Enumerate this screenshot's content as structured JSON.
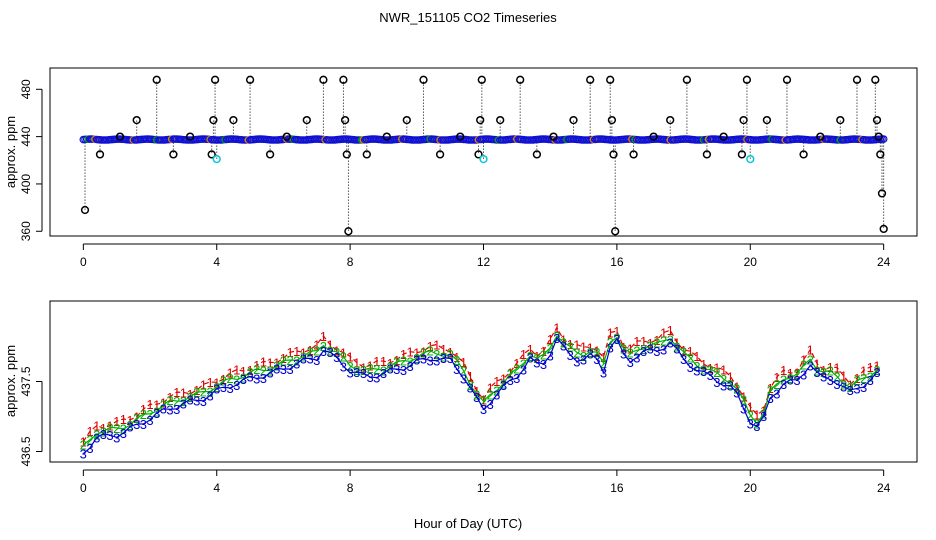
{
  "chart_data": [
    {
      "type": "scatter",
      "panel": "top",
      "title": "NWR_151105  CO2 Timeseries",
      "xlabel": "",
      "ylabel": "approx. ppm",
      "xlim": [
        -1,
        25
      ],
      "ylim": [
        356,
        498
      ],
      "xticks": [
        "0",
        "4",
        "8",
        "12",
        "16",
        "20",
        "24"
      ],
      "yticks": [
        "360",
        "400",
        "440",
        "480"
      ],
      "grid": false,
      "baseline_ppm": 437.5,
      "colors": {
        "main": "#1010d0",
        "flag_black": "#000000",
        "flag_cyan": "#00c8d8",
        "flag_orange": "#e08000",
        "drop": "#000000"
      },
      "spikes": [
        {
          "x": 0.05,
          "y": 378
        },
        {
          "x": 0.5,
          "y": 425
        },
        {
          "x": 1.1,
          "y": 440
        },
        {
          "x": 1.6,
          "y": 454
        },
        {
          "x": 2.2,
          "y": 488
        },
        {
          "x": 2.7,
          "y": 425
        },
        {
          "x": 3.2,
          "y": 440
        },
        {
          "x": 3.85,
          "y": 425
        },
        {
          "x": 3.9,
          "y": 454
        },
        {
          "x": 3.95,
          "y": 488
        },
        {
          "x": 4.0,
          "y": 421
        },
        {
          "x": 4.5,
          "y": 454
        },
        {
          "x": 5.0,
          "y": 488
        },
        {
          "x": 5.6,
          "y": 425
        },
        {
          "x": 6.1,
          "y": 440
        },
        {
          "x": 6.7,
          "y": 454
        },
        {
          "x": 7.2,
          "y": 488
        },
        {
          "x": 7.8,
          "y": 488
        },
        {
          "x": 7.85,
          "y": 454
        },
        {
          "x": 7.9,
          "y": 425
        },
        {
          "x": 7.95,
          "y": 360
        },
        {
          "x": 8.5,
          "y": 425
        },
        {
          "x": 9.1,
          "y": 440
        },
        {
          "x": 9.7,
          "y": 454
        },
        {
          "x": 10.2,
          "y": 488
        },
        {
          "x": 10.7,
          "y": 425
        },
        {
          "x": 11.3,
          "y": 440
        },
        {
          "x": 11.85,
          "y": 425
        },
        {
          "x": 11.9,
          "y": 454
        },
        {
          "x": 11.95,
          "y": 488
        },
        {
          "x": 12.0,
          "y": 421
        },
        {
          "x": 12.5,
          "y": 454
        },
        {
          "x": 13.1,
          "y": 488
        },
        {
          "x": 13.6,
          "y": 425
        },
        {
          "x": 14.1,
          "y": 440
        },
        {
          "x": 14.7,
          "y": 454
        },
        {
          "x": 15.2,
          "y": 488
        },
        {
          "x": 15.8,
          "y": 488
        },
        {
          "x": 15.85,
          "y": 454
        },
        {
          "x": 15.9,
          "y": 425
        },
        {
          "x": 15.95,
          "y": 360
        },
        {
          "x": 16.5,
          "y": 425
        },
        {
          "x": 17.1,
          "y": 440
        },
        {
          "x": 17.6,
          "y": 454
        },
        {
          "x": 18.1,
          "y": 488
        },
        {
          "x": 18.7,
          "y": 425
        },
        {
          "x": 19.2,
          "y": 440
        },
        {
          "x": 19.75,
          "y": 425
        },
        {
          "x": 19.8,
          "y": 454
        },
        {
          "x": 19.9,
          "y": 488
        },
        {
          "x": 20.0,
          "y": 421
        },
        {
          "x": 20.5,
          "y": 454
        },
        {
          "x": 21.1,
          "y": 488
        },
        {
          "x": 21.6,
          "y": 425
        },
        {
          "x": 22.1,
          "y": 440
        },
        {
          "x": 22.7,
          "y": 454
        },
        {
          "x": 23.2,
          "y": 488
        },
        {
          "x": 23.75,
          "y": 488
        },
        {
          "x": 23.8,
          "y": 454
        },
        {
          "x": 23.85,
          "y": 440
        },
        {
          "x": 23.9,
          "y": 425
        },
        {
          "x": 23.95,
          "y": 392
        },
        {
          "x": 24.0,
          "y": 362
        }
      ]
    },
    {
      "type": "line",
      "panel": "bottom",
      "title": "",
      "xlabel": "Hour of Day (UTC)",
      "ylabel": "approx. ppm",
      "xlim": [
        -1,
        25
      ],
      "ylim": [
        436.35,
        438.65
      ],
      "xticks": [
        "0",
        "4",
        "8",
        "12",
        "16",
        "20",
        "24"
      ],
      "yticks": [
        "436.5",
        "437.5"
      ],
      "grid": false,
      "knots": [
        [
          0.0,
          436.52
        ],
        [
          0.4,
          436.74
        ],
        [
          1.0,
          436.78
        ],
        [
          1.5,
          436.88
        ],
        [
          2.0,
          437.02
        ],
        [
          2.5,
          437.14
        ],
        [
          3.0,
          437.22
        ],
        [
          3.5,
          437.28
        ],
        [
          4.0,
          437.4
        ],
        [
          4.5,
          437.5
        ],
        [
          5.0,
          437.58
        ],
        [
          5.5,
          437.64
        ],
        [
          6.0,
          437.72
        ],
        [
          6.5,
          437.82
        ],
        [
          7.0,
          437.88
        ],
        [
          7.2,
          438.0
        ],
        [
          7.6,
          437.86
        ],
        [
          8.0,
          437.7
        ],
        [
          8.5,
          437.6
        ],
        [
          9.0,
          437.66
        ],
        [
          9.5,
          437.72
        ],
        [
          10.0,
          437.82
        ],
        [
          10.5,
          437.88
        ],
        [
          11.0,
          437.84
        ],
        [
          11.4,
          437.62
        ],
        [
          11.8,
          437.28
        ],
        [
          12.0,
          437.14
        ],
        [
          12.3,
          437.32
        ],
        [
          12.7,
          437.5
        ],
        [
          13.0,
          437.62
        ],
        [
          13.4,
          437.86
        ],
        [
          13.7,
          437.74
        ],
        [
          14.0,
          437.95
        ],
        [
          14.2,
          438.15
        ],
        [
          14.5,
          437.95
        ],
        [
          14.9,
          437.84
        ],
        [
          15.3,
          437.92
        ],
        [
          15.6,
          437.7
        ],
        [
          15.8,
          438.05
        ],
        [
          16.0,
          438.12
        ],
        [
          16.3,
          437.8
        ],
        [
          16.7,
          437.96
        ],
        [
          17.2,
          437.98
        ],
        [
          17.6,
          438.1
        ],
        [
          18.0,
          437.85
        ],
        [
          18.5,
          437.68
        ],
        [
          19.0,
          437.56
        ],
        [
          19.5,
          437.44
        ],
        [
          20.0,
          436.98
        ],
        [
          20.3,
          436.86
        ],
        [
          20.6,
          437.3
        ],
        [
          21.0,
          437.52
        ],
        [
          21.4,
          437.54
        ],
        [
          21.8,
          437.8
        ],
        [
          22.1,
          437.58
        ],
        [
          22.5,
          437.58
        ],
        [
          23.0,
          437.38
        ],
        [
          23.4,
          437.5
        ],
        [
          23.8,
          437.64
        ]
      ],
      "series": [
        {
          "name": "1",
          "marker": "1",
          "color": "#e00000",
          "offset": 0.12,
          "dash": "5,3"
        },
        {
          "name": "2",
          "marker": "2",
          "color": "#00b000",
          "offset": 0.04,
          "dash": ""
        },
        {
          "name": "3",
          "marker": "3",
          "color": "#0000d0",
          "offset": -0.04,
          "dash": ""
        }
      ]
    }
  ]
}
